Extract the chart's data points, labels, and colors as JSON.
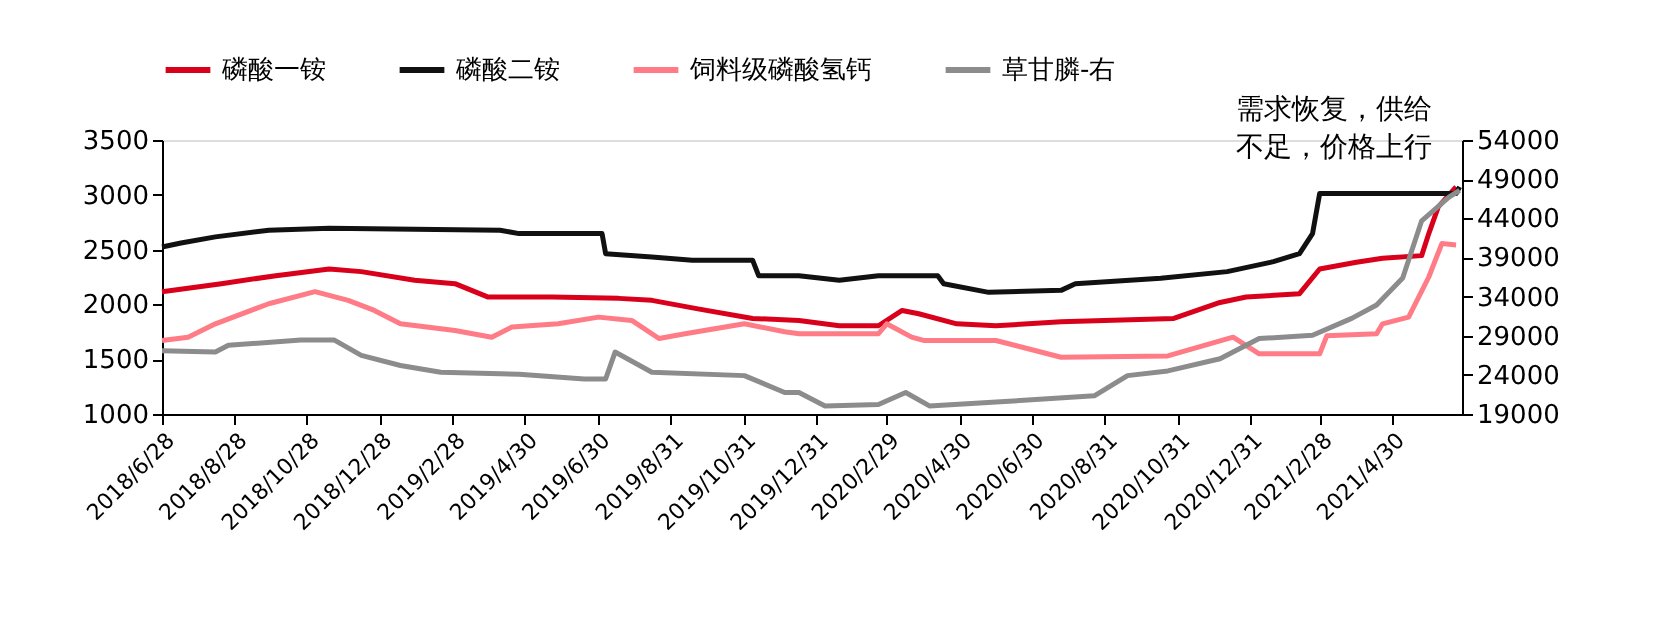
{
  "chart_data": {
    "type": "line",
    "legend": "top",
    "grid": false,
    "line_style": "solid",
    "marker": "none",
    "annotations": [
      "需求恢复，供给",
      "不足，价格上行"
    ],
    "xlim": [
      "2018-06-28",
      "2021-06-28"
    ],
    "xticks": [
      {
        "value": "2018-06-28",
        "label": "2018/6/28"
      },
      {
        "value": "2018-08-28",
        "label": "2018/8/28"
      },
      {
        "value": "2018-10-28",
        "label": "2018/10/28"
      },
      {
        "value": "2018-12-28",
        "label": "2018/12/28"
      },
      {
        "value": "2019-02-28",
        "label": "2019/2/28"
      },
      {
        "value": "2019-04-30",
        "label": "2019/4/30"
      },
      {
        "value": "2019-06-30",
        "label": "2019/6/30"
      },
      {
        "value": "2019-08-31",
        "label": "2019/8/31"
      },
      {
        "value": "2019-10-31",
        "label": "2019/10/31"
      },
      {
        "value": "2019-12-31",
        "label": "2019/12/31"
      },
      {
        "value": "2020-02-29",
        "label": "2020/2/29"
      },
      {
        "value": "2020-04-30",
        "label": "2020/4/30"
      },
      {
        "value": "2020-06-30",
        "label": "2020/6/30"
      },
      {
        "value": "2020-08-31",
        "label": "2020/8/31"
      },
      {
        "value": "2020-10-31",
        "label": "2020/10/31"
      },
      {
        "value": "2020-12-31",
        "label": "2020/12/31"
      },
      {
        "value": "2021-02-28",
        "label": "2021/2/28"
      },
      {
        "value": "2021-04-30",
        "label": "2021/4/30"
      }
    ],
    "ylim": [
      1000,
      3500
    ],
    "yticks": [
      1000,
      1500,
      2000,
      2500,
      3000,
      3500
    ],
    "y2lim": [
      19000,
      54000
    ],
    "y2ticks": [
      19000,
      24000,
      29000,
      34000,
      39000,
      44000,
      49000,
      54000
    ],
    "series": [
      {
        "name": "磷酸一铵",
        "color": "#d9001b",
        "x": [
          "2018-06-28",
          "2018-08-17",
          "2018-10-02",
          "2018-11-16",
          "2018-12-13",
          "2019-01-27",
          "2019-03-02",
          "2019-03-30",
          "2019-05-23",
          "2019-07-18",
          "2019-08-15",
          "2019-09-24",
          "2019-11-08",
          "2019-12-17",
          "2020-01-20",
          "2020-02-22",
          "2020-03-13",
          "2020-03-27",
          "2020-04-28",
          "2020-05-31",
          "2020-07-25",
          "2020-10-28",
          "2020-12-06",
          "2020-12-28",
          "2021-02-11",
          "2021-02-28",
          "2021-03-31",
          "2021-04-22",
          "2021-05-25",
          "2021-05-31",
          "2021-06-08",
          "2021-06-23"
        ],
        "values": [
          2116,
          2189,
          2262,
          2323,
          2299,
          2220,
          2189,
          2067,
          2067,
          2055,
          2037,
          1957,
          1872,
          1854,
          1805,
          1805,
          1945,
          1915,
          1823,
          1805,
          1841,
          1872,
          2018,
          2067,
          2098,
          2323,
          2384,
          2421,
          2445,
          2646,
          2890,
          3073
        ]
      },
      {
        "name": "磷酸二铵",
        "color": "#111111",
        "x": [
          "2018-06-28",
          "2018-07-14",
          "2018-08-12",
          "2018-09-26",
          "2018-11-16",
          "2019-04-09",
          "2019-04-25",
          "2019-07-04",
          "2019-07-07",
          "2019-08-15",
          "2019-09-18",
          "2019-11-08",
          "2019-11-13",
          "2019-12-17",
          "2020-01-20",
          "2020-02-22",
          "2020-04-12",
          "2020-04-17",
          "2020-05-25",
          "2020-07-25",
          "2020-08-06",
          "2020-10-17",
          "2020-12-12",
          "2021-01-20",
          "2021-02-11",
          "2021-02-22",
          "2021-02-28",
          "2021-06-23",
          "2021-06-26"
        ],
        "values": [
          2524,
          2560,
          2616,
          2677,
          2695,
          2677,
          2646,
          2646,
          2463,
          2433,
          2402,
          2402,
          2262,
          2262,
          2220,
          2262,
          2262,
          2189,
          2110,
          2128,
          2189,
          2238,
          2299,
          2390,
          2463,
          2646,
          3012,
          3012,
          3073
        ]
      },
      {
        "name": "饲料级磷酸氢钙",
        "color": "#ff7b86",
        "x": [
          "2018-06-28",
          "2018-07-20",
          "2018-08-12",
          "2018-09-26",
          "2018-11-04",
          "2018-12-02",
          "2018-12-24",
          "2019-01-15",
          "2019-03-02",
          "2019-04-02",
          "2019-04-19",
          "2019-05-28",
          "2019-07-01",
          "2019-07-29",
          "2019-08-21",
          "2019-09-12",
          "2019-11-01",
          "2019-12-05",
          "2019-12-17",
          "2020-02-22",
          "2020-02-29",
          "2020-03-21",
          "2020-03-31",
          "2020-05-31",
          "2020-07-25",
          "2020-10-23",
          "2020-12-17",
          "2021-01-08",
          "2021-02-28",
          "2021-03-06",
          "2021-04-17",
          "2021-04-22",
          "2021-05-14",
          "2021-05-31",
          "2021-06-11",
          "2021-06-23"
        ],
        "values": [
          1671,
          1701,
          1823,
          2006,
          2116,
          2037,
          1945,
          1823,
          1762,
          1701,
          1793,
          1823,
          1884,
          1854,
          1689,
          1732,
          1823,
          1750,
          1732,
          1732,
          1823,
          1701,
          1671,
          1671,
          1518,
          1530,
          1701,
          1549,
          1549,
          1713,
          1732,
          1823,
          1884,
          2250,
          2555,
          2543
        ]
      },
      {
        "name": "草甘膦-右",
        "color": "#8c8c8c",
        "axis": "y2",
        "x": [
          "2018-06-28",
          "2018-08-12",
          "2018-08-23",
          "2018-10-23",
          "2018-11-20",
          "2018-12-13",
          "2019-01-15",
          "2019-02-18",
          "2019-04-25",
          "2019-06-19",
          "2019-07-07",
          "2019-07-15",
          "2019-08-15",
          "2019-11-01",
          "2019-12-05",
          "2019-12-17",
          "2020-01-08",
          "2020-02-22",
          "2020-03-16",
          "2020-04-05",
          "2020-06-11",
          "2020-08-22",
          "2020-09-19",
          "2020-10-23",
          "2020-12-06",
          "2021-01-08",
          "2021-02-22",
          "2021-03-27",
          "2021-04-17",
          "2021-05-09",
          "2021-05-25",
          "2021-06-17",
          "2021-06-26"
        ],
        "values": [
          27083,
          26912,
          27772,
          28460,
          28460,
          26482,
          25192,
          24332,
          24074,
          23472,
          23472,
          26912,
          24332,
          23902,
          21752,
          21752,
          20032,
          20204,
          21752,
          20032,
          20634,
          21322,
          23902,
          24504,
          26052,
          28632,
          29062,
          31212,
          32932,
          36372,
          43682,
          46692,
          47552
        ]
      }
    ]
  }
}
